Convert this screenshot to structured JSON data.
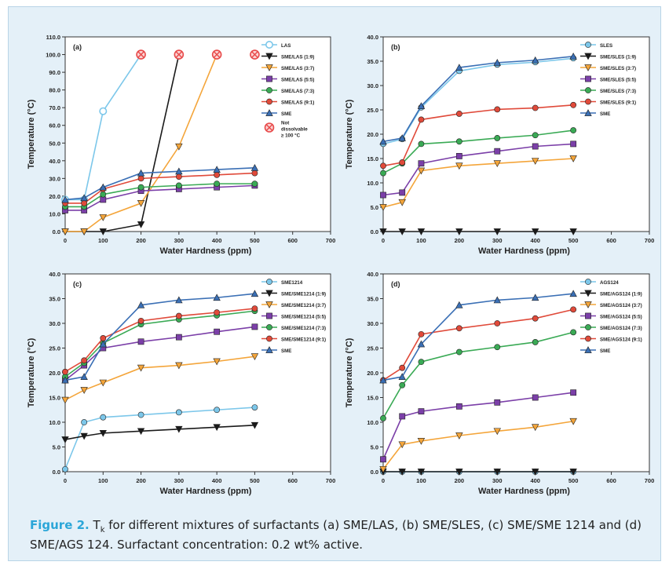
{
  "caption": {
    "label": "Figure 2.",
    "symbol": "T",
    "subscript": "k",
    "text": "for different mixtures of surfactants (a) SME/LAS, (b) SME/SLES, (c) SME/SME 1214 and (d) SME/AGS 124. Surfactant concentration: 0.2 wt% active."
  },
  "chart_data": [
    {
      "type": "line",
      "panel_label": "(a)",
      "xlabel": "Water Hardness (ppm)",
      "ylabel": "Temperature (°C)",
      "xlim": [
        0,
        700
      ],
      "ylim": [
        0,
        110
      ],
      "xticks": [
        "0",
        "100",
        "200",
        "300",
        "400",
        "500",
        "600",
        "700"
      ],
      "yticks": [
        "0.0",
        "10.0",
        "20.0",
        "30.0",
        "40.0",
        "50.0",
        "60.0",
        "70.0",
        "80.0",
        "90.0",
        "100.0",
        "110.0"
      ],
      "legend_position": "right",
      "series": [
        {
          "name": "LAS",
          "color": "#7cc7ea",
          "marker": "circle-open",
          "x": [
            0,
            50,
            100,
            200
          ],
          "y": [
            18,
            18,
            68,
            100
          ]
        },
        {
          "name": "SME/LAS (1:9)",
          "color": "#1a1a1a",
          "marker": "triangle-down",
          "x": [
            0,
            50,
            100,
            200,
            300
          ],
          "y": [
            0,
            0,
            0,
            4,
            100
          ]
        },
        {
          "name": "SME/LAS (3:7)",
          "color": "#f4a53a",
          "marker": "triangle-down",
          "x": [
            0,
            50,
            100,
            200,
            300,
            400
          ],
          "y": [
            0,
            0,
            8,
            16,
            48,
            100
          ]
        },
        {
          "name": "SME/LAS (5:5)",
          "color": "#7b3fa8",
          "marker": "square",
          "x": [
            0,
            50,
            100,
            200,
            300,
            400,
            500
          ],
          "y": [
            12,
            12,
            18,
            23,
            24,
            25,
            26
          ]
        },
        {
          "name": "SME/LAS (7:3)",
          "color": "#3aaa55",
          "marker": "circle",
          "x": [
            0,
            50,
            100,
            200,
            300,
            400,
            500
          ],
          "y": [
            14,
            14,
            21,
            25,
            26,
            27,
            27
          ]
        },
        {
          "name": "SME/LAS (9:1)",
          "color": "#e04a3a",
          "marker": "circle",
          "x": [
            0,
            50,
            100,
            200,
            300,
            400,
            500
          ],
          "y": [
            16,
            16,
            24,
            30,
            31,
            32,
            33
          ]
        },
        {
          "name": "SME",
          "color": "#3a6fb5",
          "marker": "triangle",
          "x": [
            0,
            50,
            100,
            200,
            300,
            400,
            500
          ],
          "y": [
            18,
            19,
            25,
            33,
            34,
            35,
            36
          ]
        }
      ],
      "not_dissolvable": {
        "label": "Not dissolvable ≥ 100 °C",
        "color": "#e84a4a",
        "x": [
          200,
          300,
          400,
          500
        ],
        "y": [
          100,
          100,
          100,
          100
        ]
      }
    },
    {
      "type": "line",
      "panel_label": "(b)",
      "xlabel": "Water Hardness (ppm)",
      "ylabel": "Temperature (°C)",
      "xlim": [
        0,
        700
      ],
      "ylim": [
        0,
        40
      ],
      "xticks": [
        "0",
        "100",
        "200",
        "300",
        "400",
        "500",
        "600",
        "700"
      ],
      "yticks": [
        "0.0",
        "5.0",
        "10.0",
        "15.0",
        "20.0",
        "25.0",
        "30.0",
        "35.0",
        "40.0"
      ],
      "legend_position": "right",
      "series": [
        {
          "name": "SLES",
          "color": "#7cc7ea",
          "marker": "circle",
          "x": [
            0,
            50,
            100,
            200,
            300,
            400,
            500
          ],
          "y": [
            18,
            19,
            25.5,
            33,
            34.3,
            34.8,
            35.6
          ]
        },
        {
          "name": "SME/SLES (1:9)",
          "color": "#1a1a1a",
          "marker": "triangle-down",
          "x": [
            0,
            50,
            100,
            200,
            300,
            400,
            500
          ],
          "y": [
            0,
            0,
            0,
            0,
            0,
            0,
            0
          ]
        },
        {
          "name": "SME/SLES (3:7)",
          "color": "#f4a53a",
          "marker": "triangle-down",
          "x": [
            0,
            50,
            100,
            200,
            300,
            400,
            500
          ],
          "y": [
            5,
            6,
            12.5,
            13.5,
            14,
            14.5,
            15
          ]
        },
        {
          "name": "SME/SLES (5:5)",
          "color": "#7b3fa8",
          "marker": "square",
          "x": [
            0,
            50,
            100,
            200,
            300,
            400,
            500
          ],
          "y": [
            7.5,
            8,
            14,
            15.5,
            16.5,
            17.5,
            18
          ]
        },
        {
          "name": "SME/SLES (7:3)",
          "color": "#3aaa55",
          "marker": "circle",
          "x": [
            0,
            50,
            100,
            200,
            300,
            400,
            500
          ],
          "y": [
            12,
            14,
            18,
            18.5,
            19.2,
            19.8,
            20.8
          ]
        },
        {
          "name": "SME/SLES (9:1)",
          "color": "#e04a3a",
          "marker": "circle",
          "x": [
            0,
            50,
            100,
            200,
            300,
            400,
            500
          ],
          "y": [
            13.5,
            14.2,
            23,
            24.2,
            25.1,
            25.4,
            26
          ]
        },
        {
          "name": "SME",
          "color": "#3a6fb5",
          "marker": "triangle",
          "x": [
            0,
            50,
            100,
            200,
            300,
            400,
            500
          ],
          "y": [
            18.5,
            19.2,
            25.8,
            33.7,
            34.7,
            35.2,
            36
          ]
        }
      ]
    },
    {
      "type": "line",
      "panel_label": "(c)",
      "xlabel": "Water Hardness (ppm)",
      "ylabel": "Temperature (°C)",
      "xlim": [
        0,
        700
      ],
      "ylim": [
        0,
        40
      ],
      "xticks": [
        "0",
        "100",
        "200",
        "300",
        "400",
        "500",
        "600",
        "700"
      ],
      "yticks": [
        "0.0",
        "5.0",
        "10.0",
        "15.0",
        "20.0",
        "25.0",
        "30.0",
        "35.0",
        "40.0"
      ],
      "legend_position": "right",
      "series": [
        {
          "name": "SME1214",
          "color": "#7cc7ea",
          "marker": "circle",
          "x": [
            0,
            50,
            100,
            200,
            300,
            400,
            500
          ],
          "y": [
            0.5,
            10,
            11,
            11.5,
            12,
            12.5,
            13
          ]
        },
        {
          "name": "SME/SME1214 (1:9)",
          "color": "#1a1a1a",
          "marker": "triangle-down",
          "x": [
            0,
            50,
            100,
            200,
            300,
            400,
            500
          ],
          "y": [
            6.5,
            7.2,
            7.8,
            8.2,
            8.6,
            9,
            9.4
          ]
        },
        {
          "name": "SME/SME1214 (3:7)",
          "color": "#f4a53a",
          "marker": "triangle-down",
          "x": [
            0,
            50,
            100,
            200,
            300,
            400,
            500
          ],
          "y": [
            14.5,
            16.5,
            18,
            21,
            21.5,
            22.3,
            23.3
          ]
        },
        {
          "name": "SME/SME1214 (5:5)",
          "color": "#7b3fa8",
          "marker": "square",
          "x": [
            0,
            50,
            100,
            200,
            300,
            400,
            500
          ],
          "y": [
            18.5,
            21.5,
            25,
            26.3,
            27.2,
            28.3,
            29.3
          ]
        },
        {
          "name": "SME/SME1214 (7:3)",
          "color": "#3aaa55",
          "marker": "circle",
          "x": [
            0,
            50,
            100,
            200,
            300,
            400,
            500
          ],
          "y": [
            19.2,
            22,
            26,
            29.8,
            30.8,
            31.6,
            32.5
          ]
        },
        {
          "name": "SME/SME1214 (9:1)",
          "color": "#e04a3a",
          "marker": "circle",
          "x": [
            0,
            50,
            100,
            200,
            300,
            400,
            500
          ],
          "y": [
            20.2,
            22.5,
            27,
            30.5,
            31.5,
            32.2,
            33
          ]
        },
        {
          "name": "SME",
          "color": "#3a6fb5",
          "marker": "triangle",
          "x": [
            0,
            50,
            100,
            200,
            300,
            400,
            500
          ],
          "y": [
            18.5,
            19.2,
            25.8,
            33.7,
            34.7,
            35.2,
            36
          ]
        }
      ]
    },
    {
      "type": "line",
      "panel_label": "(d)",
      "xlabel": "Water Hardness (ppm)",
      "ylabel": "Temperature (°C)",
      "xlim": [
        0,
        700
      ],
      "ylim": [
        0,
        40
      ],
      "xticks": [
        "0",
        "100",
        "200",
        "300",
        "400",
        "500",
        "600",
        "700"
      ],
      "yticks": [
        "0.0",
        "5.0",
        "10.0",
        "15.0",
        "20.0",
        "25.0",
        "30.0",
        "35.0",
        "40.0"
      ],
      "legend_position": "right",
      "series": [
        {
          "name": "AGS124",
          "color": "#7cc7ea",
          "marker": "circle",
          "x": [
            0,
            50,
            100,
            200,
            300,
            400,
            500
          ],
          "y": [
            0,
            0,
            0,
            0,
            0,
            0,
            0
          ]
        },
        {
          "name": "SME/AGS124 (1:9)",
          "color": "#1a1a1a",
          "marker": "triangle-down",
          "x": [
            0,
            50,
            100,
            200,
            300,
            400,
            500
          ],
          "y": [
            0,
            0,
            0,
            0,
            0,
            0,
            0
          ]
        },
        {
          "name": "SME/AGS124 (3:7)",
          "color": "#f4a53a",
          "marker": "triangle-down",
          "x": [
            0,
            50,
            100,
            200,
            300,
            400,
            500
          ],
          "y": [
            0.5,
            5.5,
            6.2,
            7.3,
            8.2,
            9,
            10.2
          ]
        },
        {
          "name": "SME/AGS124 (5:5)",
          "color": "#7b3fa8",
          "marker": "square",
          "x": [
            0,
            50,
            100,
            200,
            300,
            400,
            500
          ],
          "y": [
            2.5,
            11.2,
            12.2,
            13.2,
            14,
            15,
            16
          ]
        },
        {
          "name": "SME/AGS124 (7:3)",
          "color": "#3aaa55",
          "marker": "circle",
          "x": [
            0,
            50,
            100,
            200,
            300,
            400,
            500
          ],
          "y": [
            10.8,
            17.5,
            22.2,
            24.2,
            25.2,
            26.2,
            28.2
          ]
        },
        {
          "name": "SME/AGS124 (9:1)",
          "color": "#e04a3a",
          "marker": "circle",
          "x": [
            0,
            50,
            100,
            200,
            300,
            400,
            500
          ],
          "y": [
            18.5,
            21,
            27.8,
            29,
            30,
            31,
            32.8
          ]
        },
        {
          "name": "SME",
          "color": "#3a6fb5",
          "marker": "triangle",
          "x": [
            0,
            50,
            100,
            200,
            300,
            400,
            500
          ],
          "y": [
            18.5,
            19.2,
            25.8,
            33.7,
            34.7,
            35.2,
            36
          ]
        }
      ]
    }
  ]
}
